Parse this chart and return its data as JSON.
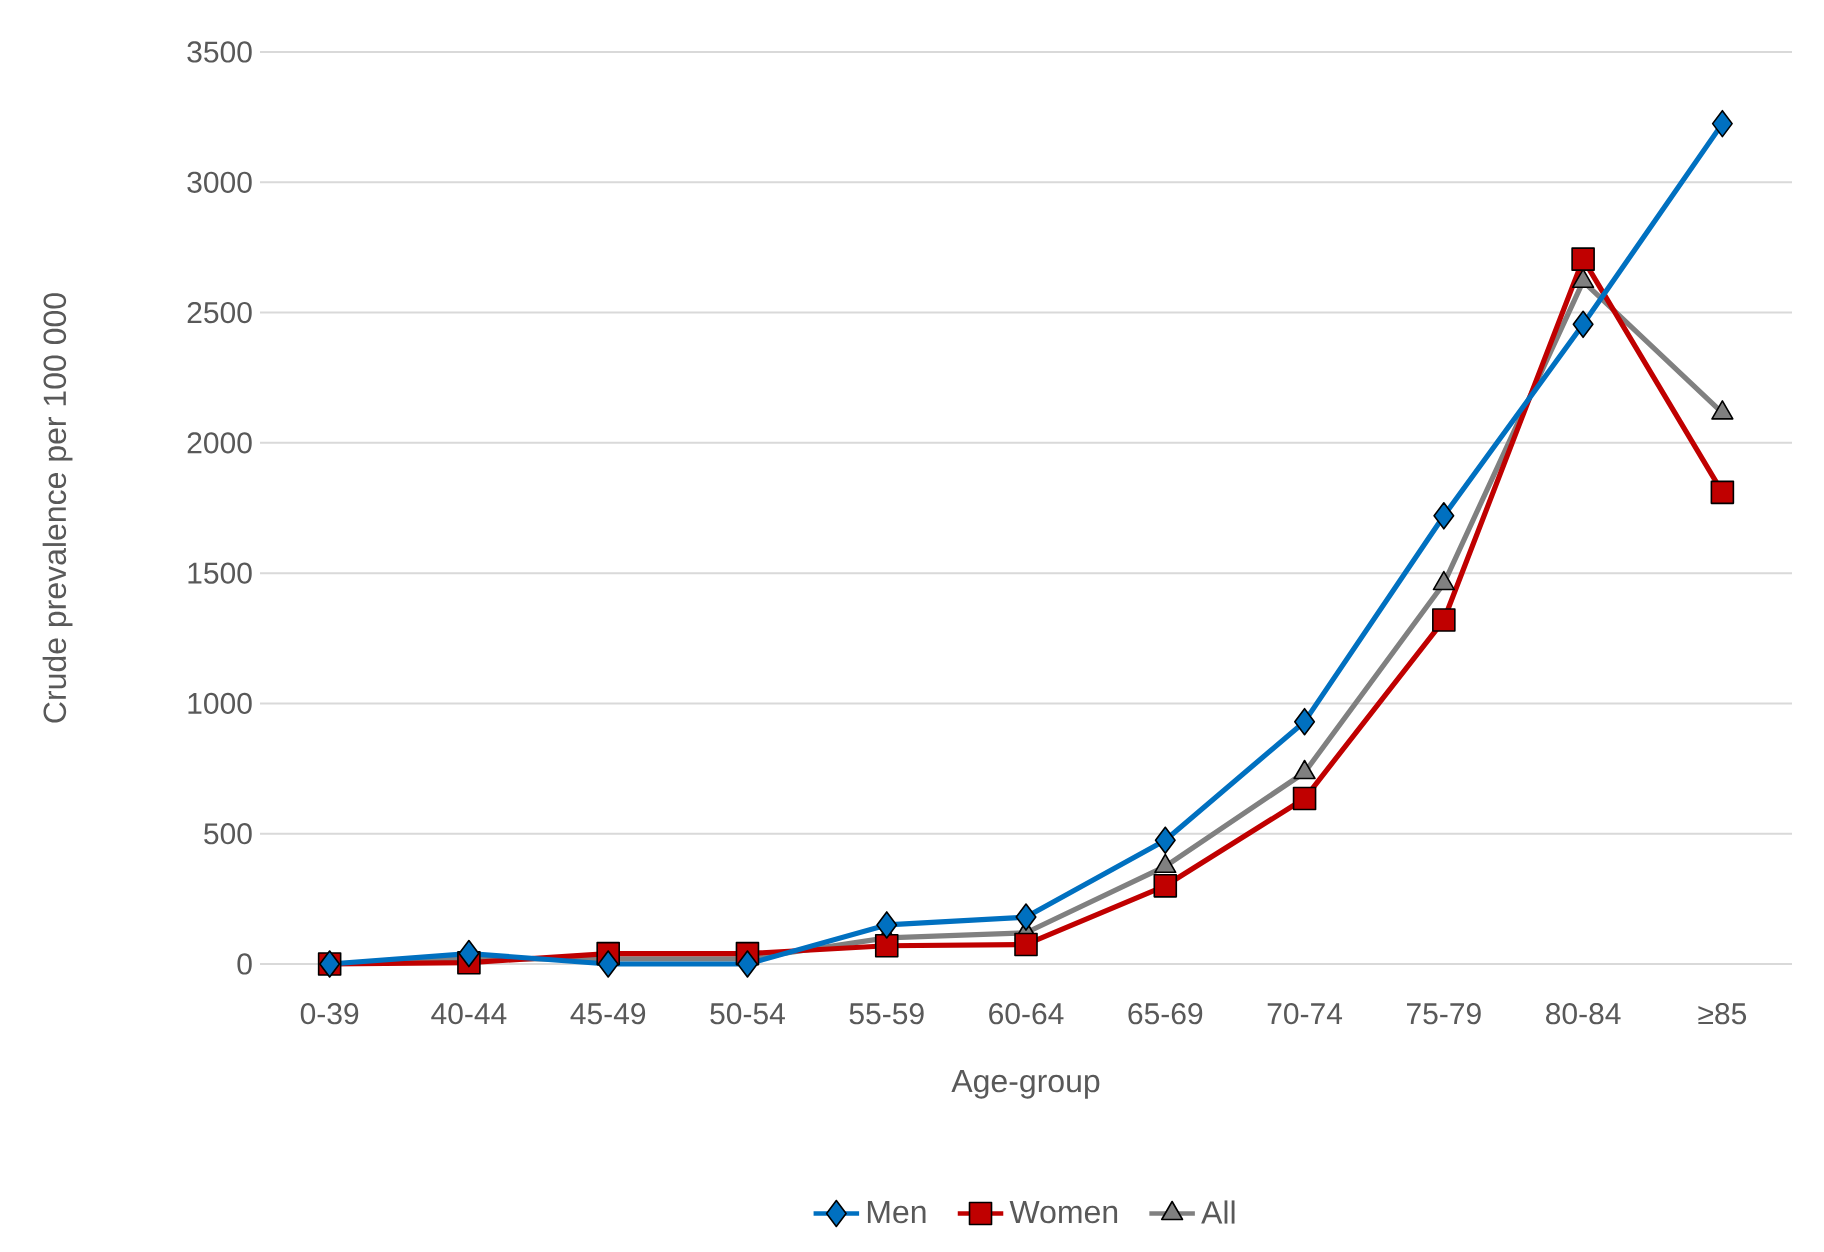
{
  "chart_data": {
    "type": "line",
    "xlabel": "Age-group",
    "ylabel": "Crude prevalence per 100 000",
    "categories": [
      "0-39",
      "40-44",
      "45-49",
      "50-54",
      "55-59",
      "60-64",
      "65-69",
      "70-74",
      "75-79",
      "80-84",
      "≥85"
    ],
    "series": [
      {
        "name": "Men",
        "color": "#0070c0",
        "marker": "diamond",
        "values": [
          0,
          40,
          0,
          0,
          150,
          180,
          475,
          930,
          1720,
          2455,
          3225
        ]
      },
      {
        "name": "Women",
        "color": "#c00000",
        "marker": "square",
        "values": [
          0,
          5,
          40,
          40,
          70,
          75,
          300,
          635,
          1320,
          2705,
          1810
        ]
      },
      {
        "name": "All",
        "color": "#808080",
        "marker": "triangle",
        "values": [
          0,
          20,
          20,
          20,
          100,
          120,
          375,
          735,
          1460,
          2620,
          2115
        ]
      }
    ],
    "ylim": [
      0,
      3500
    ],
    "yticks": [
      0,
      500,
      1000,
      1500,
      2000,
      2500,
      3000,
      3500
    ],
    "grid": "y",
    "legend": "bottom",
    "line_style": "solid"
  }
}
